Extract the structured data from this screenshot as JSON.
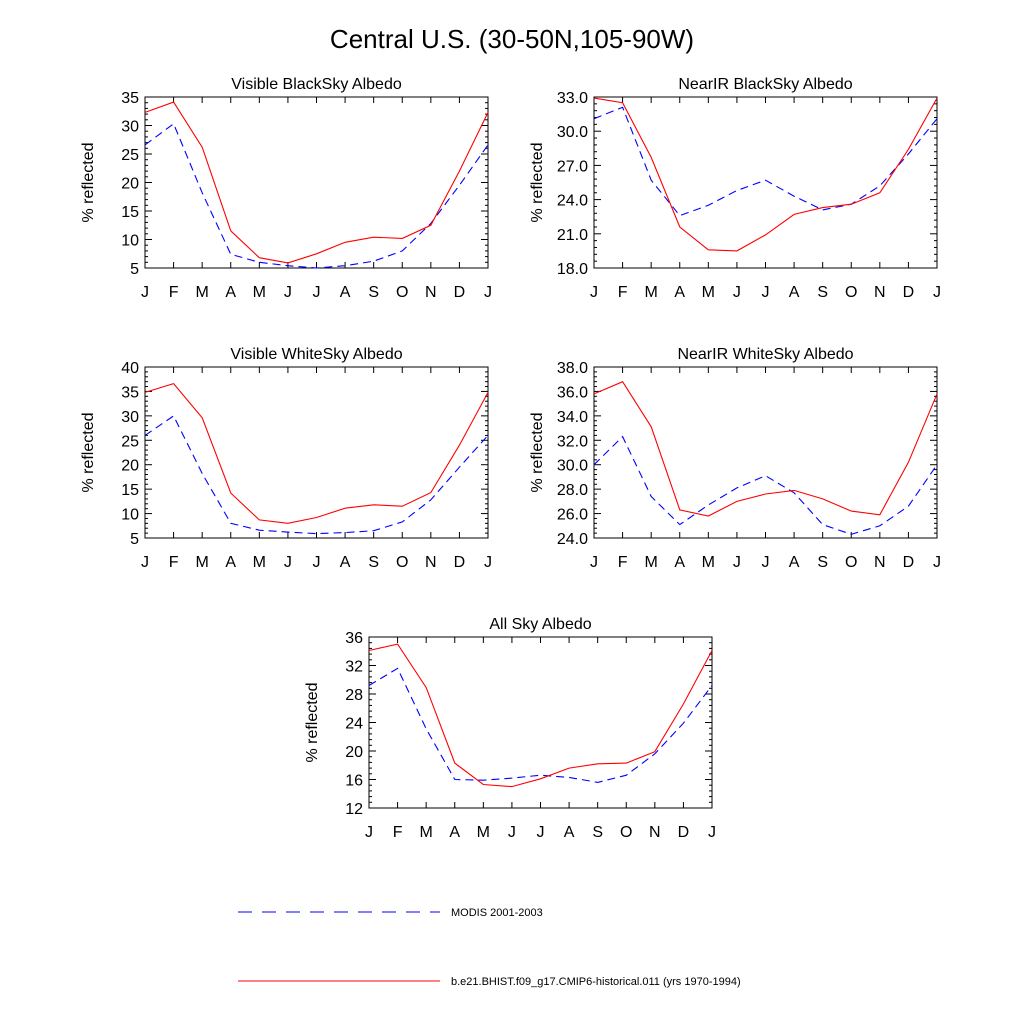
{
  "figure": {
    "title": "Central U.S. (30-50N,105-90W)"
  },
  "legend": {
    "entries": [
      {
        "label": "MODIS 2001-2003",
        "color": "#0000ff",
        "style": "dashed"
      },
      {
        "label": "b.e21.BHIST.f09_g17.CMIP6-historical.011 (yrs 1970-1994)",
        "color": "#ff0000",
        "style": "solid"
      }
    ]
  },
  "chart_data": [
    {
      "type": "line",
      "title": "Visible BlackSky Albedo",
      "ylabel": "% reflected",
      "x": [
        "J",
        "F",
        "M",
        "A",
        "M",
        "J",
        "J",
        "A",
        "S",
        "O",
        "N",
        "D",
        "J"
      ],
      "ylim": [
        5,
        35
      ],
      "yticks": [
        "5",
        "10",
        "15",
        "20",
        "25",
        "30",
        "35"
      ],
      "series": [
        {
          "name": "MODIS 2001-2003",
          "color": "#0000ff",
          "dash": true,
          "values": [
            26.6,
            30.3,
            18.2,
            7.4,
            6.0,
            5.4,
            5.0,
            5.4,
            6.2,
            8.0,
            12.8,
            19.5,
            26.6
          ]
        },
        {
          "name": "b.e21.BHIST.f09_g17.CMIP6-historical.011 (yrs 1970-1994)",
          "color": "#ff0000",
          "dash": false,
          "values": [
            32.3,
            34.1,
            26.2,
            11.5,
            6.8,
            5.9,
            7.5,
            9.5,
            10.4,
            10.2,
            12.5,
            22.0,
            32.3
          ]
        }
      ]
    },
    {
      "type": "line",
      "title": "NearIR BlackSky Albedo",
      "ylabel": "% reflected",
      "x": [
        "J",
        "F",
        "M",
        "A",
        "M",
        "J",
        "J",
        "A",
        "S",
        "O",
        "N",
        "D",
        "J"
      ],
      "ylim": [
        18.0,
        33.0
      ],
      "yticks": [
        "18.0",
        "21.0",
        "24.0",
        "27.0",
        "30.0",
        "33.0"
      ],
      "series": [
        {
          "name": "MODIS 2001-2003",
          "color": "#0000ff",
          "dash": true,
          "values": [
            31.1,
            32.1,
            25.7,
            22.6,
            23.5,
            24.8,
            25.7,
            24.3,
            23.1,
            23.6,
            25.2,
            28.0,
            31.1
          ]
        },
        {
          "name": "b.e21.BHIST.f09_g17.CMIP6-historical.011 (yrs 1970-1994)",
          "color": "#ff0000",
          "dash": false,
          "values": [
            32.9,
            32.5,
            27.7,
            21.6,
            19.6,
            19.5,
            20.9,
            22.7,
            23.3,
            23.6,
            24.6,
            28.4,
            32.9
          ]
        }
      ]
    },
    {
      "type": "line",
      "title": "Visible WhiteSky Albedo",
      "ylabel": "% reflected",
      "x": [
        "J",
        "F",
        "M",
        "A",
        "M",
        "J",
        "J",
        "A",
        "S",
        "O",
        "N",
        "D",
        "J"
      ],
      "ylim": [
        5,
        40
      ],
      "yticks": [
        "5",
        "10",
        "15",
        "20",
        "25",
        "30",
        "35",
        "40"
      ],
      "series": [
        {
          "name": "MODIS 2001-2003",
          "color": "#0000ff",
          "dash": true,
          "values": [
            26.0,
            30.0,
            18.2,
            8.0,
            6.6,
            6.2,
            5.9,
            6.1,
            6.5,
            8.3,
            12.8,
            19.5,
            26.0
          ]
        },
        {
          "name": "b.e21.BHIST.f09_g17.CMIP6-historical.011 (yrs 1970-1994)",
          "color": "#ff0000",
          "dash": false,
          "values": [
            34.8,
            36.6,
            29.6,
            14.2,
            8.7,
            8.0,
            9.2,
            11.1,
            11.8,
            11.5,
            14.3,
            24.0,
            34.8
          ]
        }
      ]
    },
    {
      "type": "line",
      "title": "NearIR WhiteSky Albedo",
      "ylabel": "% reflected",
      "x": [
        "J",
        "F",
        "M",
        "A",
        "M",
        "J",
        "J",
        "A",
        "S",
        "O",
        "N",
        "D",
        "J"
      ],
      "ylim": [
        24.0,
        38.0
      ],
      "yticks": [
        "24.0",
        "26.0",
        "28.0",
        "30.0",
        "32.0",
        "34.0",
        "36.0",
        "38.0"
      ],
      "series": [
        {
          "name": "MODIS 2001-2003",
          "color": "#0000ff",
          "dash": true,
          "values": [
            30.0,
            32.3,
            27.4,
            25.1,
            26.7,
            28.1,
            29.1,
            27.7,
            25.1,
            24.3,
            25.0,
            26.6,
            30.0
          ]
        },
        {
          "name": "b.e21.BHIST.f09_g17.CMIP6-historical.011 (yrs 1970-1994)",
          "color": "#ff0000",
          "dash": false,
          "values": [
            35.8,
            36.8,
            33.1,
            26.3,
            25.8,
            27.0,
            27.6,
            27.9,
            27.2,
            26.2,
            25.9,
            30.2,
            35.8
          ]
        }
      ]
    },
    {
      "type": "line",
      "title": "All Sky Albedo",
      "ylabel": "% reflected",
      "x": [
        "J",
        "F",
        "M",
        "A",
        "M",
        "J",
        "J",
        "A",
        "S",
        "O",
        "N",
        "D",
        "J"
      ],
      "ylim": [
        12,
        36
      ],
      "yticks": [
        "12",
        "16",
        "20",
        "24",
        "28",
        "32",
        "36"
      ],
      "series": [
        {
          "name": "MODIS 2001-2003",
          "color": "#0000ff",
          "dash": true,
          "values": [
            29.2,
            31.6,
            23.1,
            16.0,
            15.9,
            16.2,
            16.6,
            16.3,
            15.6,
            16.6,
            19.6,
            23.9,
            29.2
          ]
        },
        {
          "name": "b.e21.BHIST.f09_g17.CMIP6-historical.011 (yrs 1970-1994)",
          "color": "#ff0000",
          "dash": false,
          "values": [
            34.1,
            35.0,
            28.9,
            18.3,
            15.3,
            15.0,
            16.1,
            17.6,
            18.2,
            18.3,
            19.9,
            26.6,
            34.1
          ]
        }
      ]
    }
  ]
}
